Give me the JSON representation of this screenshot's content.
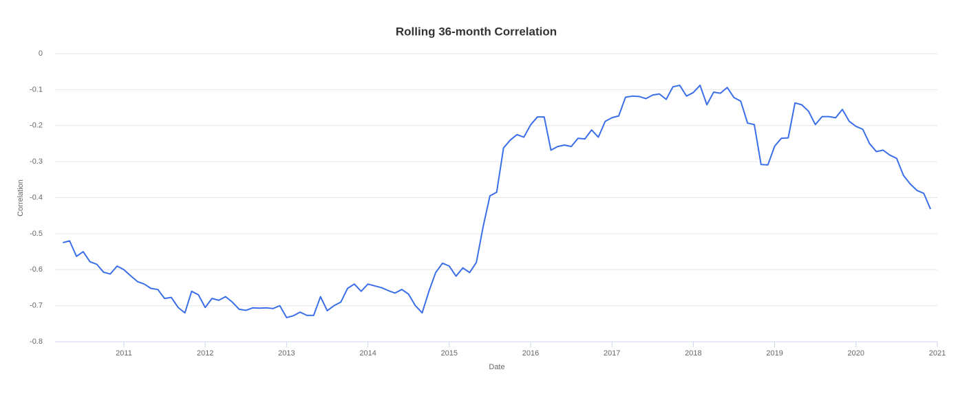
{
  "chart_data": {
    "type": "line",
    "title": "Rolling 36-month Correlation",
    "x_label": "Date",
    "y_label": "Correlation",
    "x": [
      2010.25,
      2010.333,
      2010.417,
      2010.5,
      2010.583,
      2010.667,
      2010.75,
      2010.833,
      2010.917,
      2011,
      2011.083,
      2011.167,
      2011.25,
      2011.333,
      2011.417,
      2011.5,
      2011.583,
      2011.667,
      2011.75,
      2011.833,
      2011.917,
      2012,
      2012.083,
      2012.167,
      2012.25,
      2012.333,
      2012.417,
      2012.5,
      2012.583,
      2012.667,
      2012.75,
      2012.833,
      2012.917,
      2013,
      2013.083,
      2013.167,
      2013.25,
      2013.333,
      2013.417,
      2013.5,
      2013.583,
      2013.667,
      2013.75,
      2013.833,
      2013.917,
      2014,
      2014.083,
      2014.167,
      2014.25,
      2014.333,
      2014.417,
      2014.5,
      2014.583,
      2014.667,
      2014.75,
      2014.833,
      2014.917,
      2015,
      2015.083,
      2015.167,
      2015.25,
      2015.333,
      2015.417,
      2015.5,
      2015.583,
      2015.667,
      2015.75,
      2015.833,
      2015.917,
      2016,
      2016.083,
      2016.167,
      2016.25,
      2016.333,
      2016.417,
      2016.5,
      2016.583,
      2016.667,
      2016.75,
      2016.833,
      2016.917,
      2017,
      2017.083,
      2017.167,
      2017.25,
      2017.333,
      2017.417,
      2017.5,
      2017.583,
      2017.667,
      2017.75,
      2017.833,
      2017.917,
      2018,
      2018.083,
      2018.167,
      2018.25,
      2018.333,
      2018.417,
      2018.5,
      2018.583,
      2018.667,
      2018.75,
      2018.833,
      2018.917,
      2019,
      2019.083,
      2019.167,
      2019.25,
      2019.333,
      2019.417,
      2019.5,
      2019.583,
      2019.667,
      2019.75,
      2019.833,
      2019.917,
      2020,
      2020.083,
      2020.167,
      2020.25,
      2020.333,
      2020.417,
      2020.5,
      2020.583,
      2020.667,
      2020.75,
      2020.833,
      2020.917
    ],
    "values": [
      -0.525,
      -0.52,
      -0.563,
      -0.55,
      -0.578,
      -0.585,
      -0.607,
      -0.612,
      -0.59,
      -0.6,
      -0.617,
      -0.633,
      -0.64,
      -0.652,
      -0.655,
      -0.68,
      -0.677,
      -0.705,
      -0.72,
      -0.66,
      -0.67,
      -0.705,
      -0.68,
      -0.685,
      -0.675,
      -0.69,
      -0.71,
      -0.713,
      -0.706,
      -0.707,
      -0.706,
      -0.708,
      -0.7,
      -0.733,
      -0.728,
      -0.718,
      -0.727,
      -0.727,
      -0.675,
      -0.714,
      -0.7,
      -0.69,
      -0.652,
      -0.64,
      -0.66,
      -0.64,
      -0.645,
      -0.65,
      -0.658,
      -0.665,
      -0.655,
      -0.668,
      -0.7,
      -0.72,
      -0.66,
      -0.608,
      -0.582,
      -0.59,
      -0.618,
      -0.595,
      -0.608,
      -0.58,
      -0.48,
      -0.395,
      -0.385,
      -0.262,
      -0.24,
      -0.225,
      -0.232,
      -0.198,
      -0.176,
      -0.176,
      -0.268,
      -0.258,
      -0.254,
      -0.258,
      -0.235,
      -0.237,
      -0.212,
      -0.232,
      -0.188,
      -0.178,
      -0.173,
      -0.121,
      -0.118,
      -0.119,
      -0.125,
      -0.115,
      -0.112,
      -0.127,
      -0.092,
      -0.088,
      -0.118,
      -0.108,
      -0.088,
      -0.142,
      -0.107,
      -0.11,
      -0.094,
      -0.122,
      -0.132,
      -0.193,
      -0.197,
      -0.308,
      -0.309,
      -0.257,
      -0.235,
      -0.234,
      -0.137,
      -0.142,
      -0.16,
      -0.197,
      -0.175,
      -0.175,
      -0.178,
      -0.155,
      -0.188,
      -0.202,
      -0.21,
      -0.25,
      -0.272,
      -0.268,
      -0.282,
      -0.291,
      -0.338,
      -0.362,
      -0.38,
      -0.388,
      -0.432
    ],
    "color": "#3a6ee8",
    "xlim": [
      2010.154,
      2021
    ],
    "xticks": [
      2011,
      2012,
      2013,
      2014,
      2015,
      2016,
      2017,
      2018,
      2019,
      2020,
      2021
    ],
    "ylim": [
      -0.8,
      0
    ],
    "yticks": [
      0,
      -0.1,
      -0.2,
      -0.3,
      -0.4,
      -0.5,
      -0.6,
      -0.7,
      -0.8
    ],
    "grid": true
  }
}
